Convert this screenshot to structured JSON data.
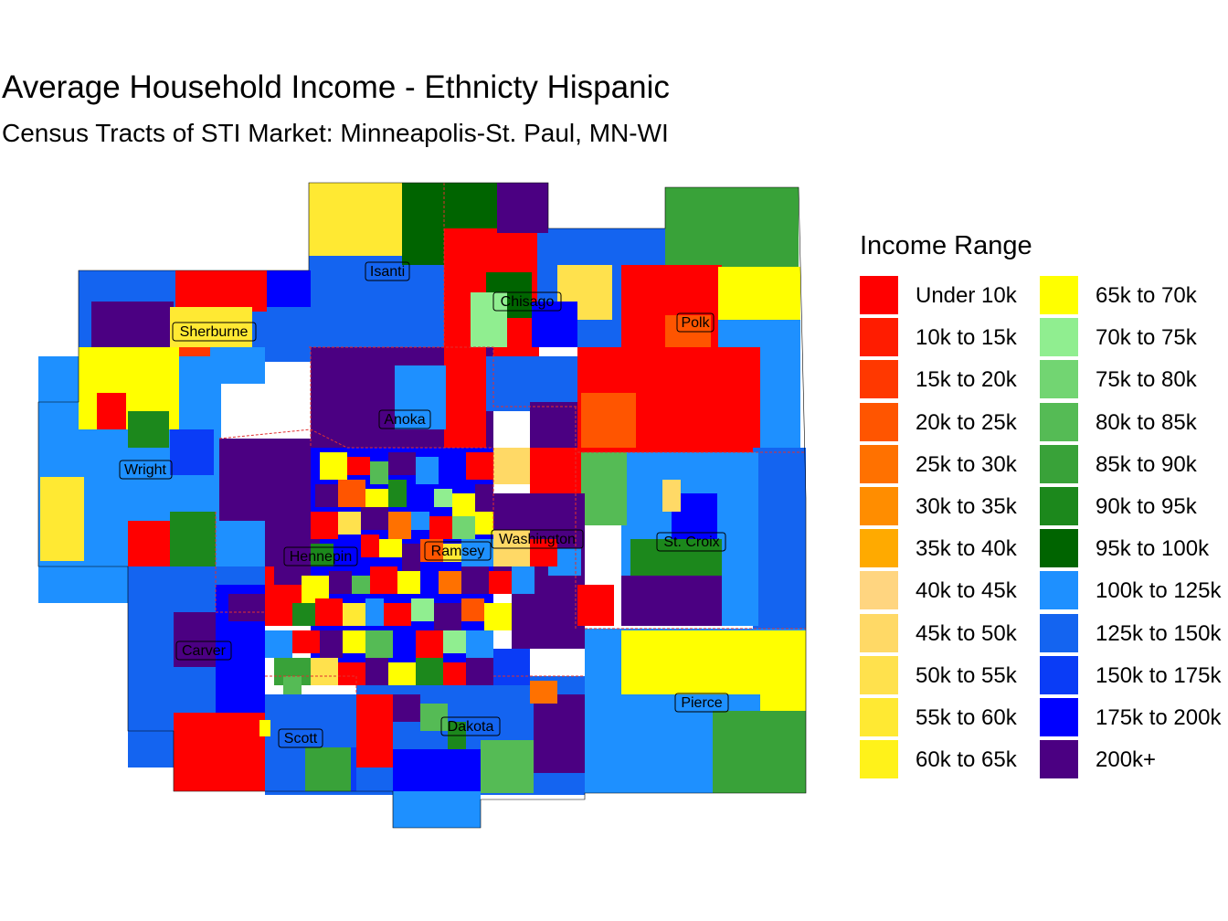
{
  "title": "Average Household Income - Ethnicty Hispanic",
  "subtitle": "Census Tracts of STI Market: Minneapolis-St. Paul, MN-WI",
  "legend": {
    "title": "Income Range",
    "items": [
      {
        "label": "Under 10k",
        "color": "#ff0000"
      },
      {
        "label": "10k to 15k",
        "color": "#ff1c00"
      },
      {
        "label": "15k to 20k",
        "color": "#ff3800"
      },
      {
        "label": "20k to 25k",
        "color": "#ff5500"
      },
      {
        "label": "25k to 30k",
        "color": "#ff7100"
      },
      {
        "label": "30k to 35k",
        "color": "#ff8d00"
      },
      {
        "label": "35k to 40k",
        "color": "#ffaa00"
      },
      {
        "label": "40k to 45k",
        "color": "#ffd580"
      },
      {
        "label": "45k to 50k",
        "color": "#ffd966"
      },
      {
        "label": "50k to 55k",
        "color": "#ffe14d"
      },
      {
        "label": "55k to 60k",
        "color": "#ffe933"
      },
      {
        "label": "60k to 65k",
        "color": "#fff21a"
      },
      {
        "label": "65k to 70k",
        "color": "#ffff00"
      },
      {
        "label": "70k to 75k",
        "color": "#90ee90"
      },
      {
        "label": "75k to 80k",
        "color": "#72d572"
      },
      {
        "label": "80k to 85k",
        "color": "#55bb55"
      },
      {
        "label": "85k to 90k",
        "color": "#39a239"
      },
      {
        "label": "90k to 95k",
        "color": "#1c881c"
      },
      {
        "label": "95k to 100k",
        "color": "#006400"
      },
      {
        "label": "100k to 125k",
        "color": "#1e90ff"
      },
      {
        "label": "125k to 150k",
        "color": "#1464f0"
      },
      {
        "label": "150k to 175k",
        "color": "#0a3cf6"
      },
      {
        "label": "175k to 200k",
        "color": "#0000ff"
      },
      {
        "label": "200k+",
        "color": "#4b0082"
      }
    ]
  },
  "counties": [
    {
      "name": "Isanti"
    },
    {
      "name": "Chisago"
    },
    {
      "name": "Polk"
    },
    {
      "name": "Sherburne"
    },
    {
      "name": "Anoka"
    },
    {
      "name": "Wright"
    },
    {
      "name": "Washington"
    },
    {
      "name": "St. Croix"
    },
    {
      "name": "Hennepin"
    },
    {
      "name": "Ramsey"
    },
    {
      "name": "Carver"
    },
    {
      "name": "Pierce"
    },
    {
      "name": "Dakota"
    },
    {
      "name": "Scott"
    }
  ]
}
